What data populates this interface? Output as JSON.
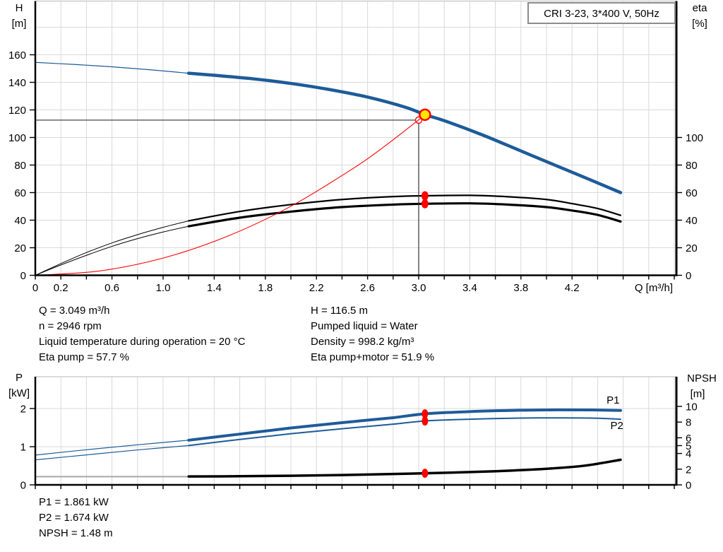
{
  "colors": {
    "curve_blue": "#1E5B99",
    "curve_black": "#000000",
    "curve_red": "#FF0000",
    "grid": "#D9D9D9",
    "frame_gray": "#C4C4C4",
    "marker_yellow": "#FFE600",
    "marker_red": "#FF0000",
    "npsh_ext_gray": "#A8A8A8",
    "crosshair": "#333333"
  },
  "chart_data": [
    {
      "type": "line",
      "title": "CRI 3-23, 3*400 V, 50Hz",
      "x_axis": {
        "label": "Q [m³/h]",
        "min": 0,
        "max": 5.02,
        "grid_step": 0.2,
        "tick_step": 0.2,
        "tick_labels": [
          "0",
          "0.2",
          "0.6",
          "1.0",
          "1.4",
          "1.8",
          "2.2",
          "2.6",
          "3.0",
          "3.4",
          "3.8",
          "4.2"
        ],
        "tick_label_values": [
          0,
          0.2,
          0.6,
          1.0,
          1.4,
          1.8,
          2.2,
          2.6,
          3.0,
          3.4,
          3.8,
          4.2
        ]
      },
      "y_left": {
        "label": "H [m]",
        "label_lines": [
          "H",
          "[m]"
        ],
        "min": 0,
        "max": 199,
        "ticks": [
          0,
          20,
          40,
          60,
          80,
          100,
          120,
          140,
          160
        ],
        "grid": [
          20,
          40,
          60,
          80,
          100,
          120,
          140,
          160,
          180
        ]
      },
      "y_right": {
        "label": "eta [%]",
        "label_lines": [
          "eta",
          "[%]"
        ],
        "ticks": [
          0,
          20,
          40,
          60,
          80,
          100
        ]
      },
      "series": [
        {
          "name": "qh-curve-extension",
          "axis": "left",
          "color": "#1E5B99",
          "width": 1.2,
          "points": [
            [
              0,
              154.5
            ],
            [
              0.3,
              153
            ],
            [
              0.6,
              151.3
            ],
            [
              0.9,
              149.1
            ],
            [
              1.2,
              146.6
            ]
          ]
        },
        {
          "name": "qh-curve",
          "axis": "left",
          "color": "#1E5B99",
          "width": 4.5,
          "points": [
            [
              1.2,
              146.6
            ],
            [
              1.4,
              145.1
            ],
            [
              1.7,
              142.6
            ],
            [
              2.0,
              139.2
            ],
            [
              2.3,
              134.8
            ],
            [
              2.6,
              129.3
            ],
            [
              2.9,
              121.8
            ],
            [
              3.049,
              116.5
            ],
            [
              3.2,
              112.2
            ],
            [
              3.5,
              101.8
            ],
            [
              3.8,
              90.2
            ],
            [
              4.1,
              78.6
            ],
            [
              4.35,
              69
            ],
            [
              4.58,
              60
            ]
          ]
        },
        {
          "name": "eta-pump-curve-extension",
          "axis": "right",
          "color": "#000000",
          "width": 1,
          "points": [
            [
              0,
              0
            ],
            [
              0.2,
              8.5
            ],
            [
              0.4,
              16.5
            ],
            [
              0.6,
              23.5
            ],
            [
              0.8,
              29.5
            ],
            [
              1.0,
              34.8
            ],
            [
              1.2,
              39.5
            ]
          ]
        },
        {
          "name": "eta-pump-curve",
          "axis": "right",
          "color": "#000000",
          "width": 2.2,
          "points": [
            [
              1.2,
              39.5
            ],
            [
              1.6,
              46.3
            ],
            [
              2.0,
              51.3
            ],
            [
              2.4,
              55
            ],
            [
              2.8,
              57.1
            ],
            [
              3.049,
              57.7
            ],
            [
              3.4,
              58
            ],
            [
              3.7,
              57
            ],
            [
              4.0,
              55
            ],
            [
              4.2,
              52
            ],
            [
              4.4,
              48.5
            ],
            [
              4.58,
              43.5
            ]
          ]
        },
        {
          "name": "eta-pump-motor-curve-extension",
          "axis": "right",
          "color": "#000000",
          "width": 1,
          "points": [
            [
              0,
              0
            ],
            [
              0.2,
              7.5
            ],
            [
              0.4,
              14.5
            ],
            [
              0.6,
              21
            ],
            [
              0.8,
              26.6
            ],
            [
              1.0,
              31.4
            ],
            [
              1.2,
              35.6
            ]
          ]
        },
        {
          "name": "eta-pump-motor-curve",
          "axis": "right",
          "color": "#000000",
          "width": 3.2,
          "points": [
            [
              1.2,
              35.6
            ],
            [
              1.6,
              41.8
            ],
            [
              2.0,
              46.2
            ],
            [
              2.4,
              49.5
            ],
            [
              2.8,
              51.3
            ],
            [
              3.049,
              51.9
            ],
            [
              3.4,
              52.2
            ],
            [
              3.7,
              51.3
            ],
            [
              4.0,
              49.5
            ],
            [
              4.2,
              47
            ],
            [
              4.4,
              43.8
            ],
            [
              4.58,
              39
            ]
          ]
        },
        {
          "name": "system-curve",
          "axis": "left",
          "color": "#FF0000",
          "width": 1.1,
          "points": [
            [
              0,
              0
            ],
            [
              0.5,
              3.1
            ],
            [
              1.0,
              12.5
            ],
            [
              1.5,
              28.2
            ],
            [
              2.0,
              50.1
            ],
            [
              2.5,
              78.3
            ],
            [
              2.75,
              94.8
            ],
            [
              3.0,
              112.8
            ],
            [
              3.049,
              116.5
            ]
          ]
        }
      ],
      "markers": [
        {
          "name": "duty-crosshair",
          "type": "crosshair",
          "q": 3.0,
          "v": 112.6,
          "axis": "left",
          "r": 4.5
        },
        {
          "name": "duty-point-marker",
          "type": "circle",
          "q": 3.0,
          "v": 112.6,
          "axis": "left",
          "r": 4.5,
          "fill": "none",
          "stroke": "#FF0000",
          "w": 1.3
        },
        {
          "name": "operating-point-marker",
          "type": "circle",
          "q": 3.049,
          "v": 116.5,
          "axis": "left",
          "r": 7.5,
          "fill": "#FFE600",
          "stroke": "#FF0000",
          "w": 2.5
        },
        {
          "name": "eta-pump-marker",
          "type": "ellipse",
          "q": 3.049,
          "v": 57.7,
          "axis": "right",
          "rx": 5,
          "ry": 6.5,
          "fill": "#FF0000"
        },
        {
          "name": "eta-pump-motor-marker",
          "type": "ellipse",
          "q": 3.049,
          "v": 51.9,
          "axis": "right",
          "rx": 5,
          "ry": 6.5,
          "fill": "#FF0000"
        }
      ],
      "annotations": []
    },
    {
      "type": "line",
      "x_axis": {
        "min": 0,
        "max": 5.02,
        "grid_step": 0.2,
        "tick_step": 0.2
      },
      "y_left": {
        "label": "P [kW]",
        "label_lines": [
          "P",
          "[kW]"
        ],
        "min": 0,
        "max": 2.83,
        "ticks": [
          0,
          1,
          2
        ],
        "grid": [
          1,
          2
        ]
      },
      "y_right": {
        "label": "NPSH [m]",
        "label_lines": [
          "NPSH",
          "[m]"
        ],
        "ticks": [
          0,
          2,
          4,
          5,
          6,
          8,
          10
        ]
      },
      "series": [
        {
          "name": "p1-curve-extension",
          "axis": "left",
          "color": "#1E5B99",
          "width": 1.2,
          "points": [
            [
              0,
              0.78
            ],
            [
              0.4,
              0.92
            ],
            [
              0.8,
              1.05
            ],
            [
              1.2,
              1.17
            ]
          ]
        },
        {
          "name": "p1-curve",
          "axis": "left",
          "color": "#1E5B99",
          "width": 4,
          "points": [
            [
              1.2,
              1.17
            ],
            [
              1.6,
              1.33
            ],
            [
              2.0,
              1.49
            ],
            [
              2.4,
              1.63
            ],
            [
              2.8,
              1.76
            ],
            [
              3.049,
              1.861
            ],
            [
              3.4,
              1.92
            ],
            [
              3.8,
              1.955
            ],
            [
              4.1,
              1.965
            ],
            [
              4.35,
              1.963
            ],
            [
              4.58,
              1.95
            ]
          ]
        },
        {
          "name": "p2-curve-extension",
          "axis": "left",
          "color": "#1E5B99",
          "width": 1.2,
          "points": [
            [
              0,
              0.655
            ],
            [
              0.4,
              0.785
            ],
            [
              0.8,
              0.915
            ],
            [
              1.2,
              1.03
            ]
          ]
        },
        {
          "name": "p2-curve",
          "axis": "left",
          "color": "#1E5B99",
          "width": 2,
          "points": [
            [
              1.2,
              1.03
            ],
            [
              1.6,
              1.19
            ],
            [
              2.0,
              1.34
            ],
            [
              2.4,
              1.47
            ],
            [
              2.8,
              1.59
            ],
            [
              3.049,
              1.674
            ],
            [
              3.4,
              1.72
            ],
            [
              3.8,
              1.75
            ],
            [
              4.1,
              1.755
            ],
            [
              4.35,
              1.75
            ],
            [
              4.58,
              1.72
            ]
          ]
        },
        {
          "name": "npsh-curve-extension",
          "axis": "right",
          "color": "#A8A8A8",
          "width": 2,
          "points": [
            [
              0,
              1.05
            ],
            [
              1.2,
              1.05
            ]
          ]
        },
        {
          "name": "npsh-curve",
          "axis": "right",
          "color": "#000000",
          "width": 3.5,
          "points": [
            [
              1.2,
              1.07
            ],
            [
              1.6,
              1.1
            ],
            [
              2.0,
              1.16
            ],
            [
              2.4,
              1.25
            ],
            [
              2.8,
              1.38
            ],
            [
              3.049,
              1.48
            ],
            [
              3.4,
              1.63
            ],
            [
              3.7,
              1.8
            ],
            [
              4.0,
              2.05
            ],
            [
              4.3,
              2.45
            ],
            [
              4.58,
              3.2
            ]
          ]
        }
      ],
      "markers": [
        {
          "name": "p1-marker",
          "type": "ellipse",
          "q": 3.049,
          "v": 1.861,
          "axis": "left",
          "rx": 4.5,
          "ry": 6.5,
          "fill": "#FF0000"
        },
        {
          "name": "p2-marker",
          "type": "ellipse",
          "q": 3.049,
          "v": 1.674,
          "axis": "left",
          "rx": 4.5,
          "ry": 6.5,
          "fill": "#FF0000"
        },
        {
          "name": "npsh-marker",
          "type": "ellipse",
          "q": 3.049,
          "v": 1.48,
          "axis": "right",
          "rx": 4.5,
          "ry": 6.5,
          "fill": "#FF0000"
        }
      ],
      "annotations": [
        {
          "text": "P1",
          "q": 4.47,
          "v": 2.13,
          "axis": "left"
        },
        {
          "text": "P2",
          "q": 4.5,
          "v": 1.46,
          "axis": "left"
        }
      ]
    }
  ],
  "info_panel": {
    "left": [
      "Q = 3.049 m³/h",
      "n = 2946 rpm",
      "Liquid temperature during operation = 20 °C",
      "Eta pump = 57.7 %"
    ],
    "right": [
      "H = 116.5 m",
      "Pumped liquid = Water",
      "Density = 998.2 kg/m³",
      "Eta pump+motor = 51.9 %"
    ]
  },
  "results_panel": {
    "lines": [
      "P1 = 1.861 kW",
      "P2 = 1.674 kW",
      "NPSH = 1.48 m"
    ]
  }
}
